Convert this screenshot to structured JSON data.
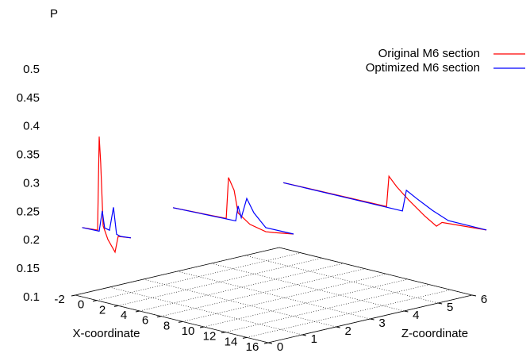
{
  "chart_data": {
    "type": "line3d",
    "ylabel": "P",
    "xlabel": "X-coordinate",
    "zlabel": "Z-coordinate",
    "xlim": [
      -2,
      16
    ],
    "xticks": [
      -2,
      0,
      2,
      4,
      6,
      8,
      10,
      12,
      14,
      16
    ],
    "zlim": [
      0,
      6
    ],
    "zticks": [
      0,
      1,
      2,
      3,
      4,
      5,
      6
    ],
    "ylim": [
      0.1,
      0.5
    ],
    "yticks": [
      0.1,
      0.15,
      0.2,
      0.25,
      0.3,
      0.35,
      0.4,
      0.45,
      0.5
    ],
    "grid": true,
    "legend": "top-right",
    "series": [
      {
        "name": "Original M6 section",
        "color": "#ff0000",
        "sections": [
          {
            "z": 0.2,
            "x": [
              -2.0,
              -0.56,
              -0.41,
              -0.27,
              -0.04,
              0.4,
              1.07,
              1.36,
              2.55
            ],
            "values": [
              0.216,
              0.218,
              0.383,
              0.338,
              0.228,
              0.206,
              0.187,
              0.216,
              0.219
            ]
          },
          {
            "z": 1.5,
            "x": [
              2.36,
              7.32,
              7.54,
              8.06,
              8.43,
              9.54,
              11.02,
              11.76,
              13.61
            ],
            "values": [
              0.253,
              0.257,
              0.33,
              0.31,
              0.272,
              0.257,
              0.251,
              0.253,
              0.259
            ]
          },
          {
            "z": 4,
            "x": [
              4.73,
              14.36,
              14.58,
              15.31,
              16.43,
              17.91,
              19.02,
              19.54,
              23.69
            ],
            "values": [
              0.273,
              0.276,
              0.33,
              0.315,
              0.297,
              0.276,
              0.263,
              0.272,
              0.278
            ]
          }
        ]
      },
      {
        "name": "Optimized M6 section",
        "color": "#0000ff",
        "sections": [
          {
            "z": 0.2,
            "x": [
              -2.0,
              -0.41,
              -0.12,
              0.1,
              0.55,
              0.92,
              1.21,
              1.59,
              2.55
            ],
            "values": [
              0.216,
              0.217,
              0.254,
              0.225,
              0.223,
              0.265,
              0.219,
              0.217,
              0.219
            ]
          },
          {
            "z": 1.5,
            "x": [
              2.36,
              8.21,
              8.43,
              8.73,
              9.24,
              9.91,
              11.02,
              13.61
            ],
            "values": [
              0.253,
              0.257,
              0.284,
              0.265,
              0.301,
              0.279,
              0.258,
              0.259
            ]
          },
          {
            "z": 4,
            "x": [
              4.73,
              15.84,
              16.21,
              17.17,
              18.65,
              20.13,
              23.69
            ],
            "values": [
              0.273,
              0.275,
              0.313,
              0.303,
              0.289,
              0.278,
              0.278
            ]
          }
        ]
      }
    ]
  }
}
